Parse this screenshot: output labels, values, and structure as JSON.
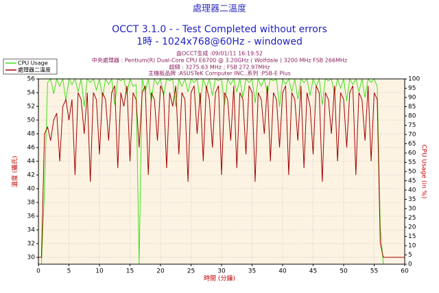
{
  "chart_data": {
    "type": "line",
    "title": "處理器二溫度",
    "subtitles": [
      "OCCT 3.1.0 -  - Test Completed without errors",
      "1時 - 1024x768@60Hz - windowed"
    ],
    "info": [
      "由OCCT生成 :09/01/11 16:19:52",
      "中央處理器 : Pentium(R) Dual-Core CPU E6700 @ 3.20GHz ( Wolfdale ) 3200 MHz FSB 266MHz",
      "超頻 : 3275.63 MHz ; FSB 272.97MHz",
      "主機板品牌 :ASUSTeK Computer INC.,系列 :P5B-E Plus"
    ],
    "x_label": "時間 (分鐘)",
    "y_label": "溫度 (攝氏)",
    "y2_label": "CPU Usage (in %)",
    "x": [
      0,
      0.5,
      1,
      1.5,
      2,
      2.5,
      3,
      3.5,
      4,
      4.5,
      5,
      5.5,
      6,
      6.5,
      7,
      7.5,
      8,
      8.5,
      9,
      9.5,
      10,
      10.5,
      11,
      11.5,
      12,
      12.5,
      13,
      13.5,
      14,
      14.5,
      15,
      15.5,
      16,
      16.5,
      17,
      17.5,
      18,
      18.5,
      19,
      19.5,
      20,
      20.5,
      21,
      21.5,
      22,
      22.5,
      23,
      23.5,
      24,
      24.5,
      25,
      25.5,
      26,
      26.5,
      27,
      27.5,
      28,
      28.5,
      29,
      29.5,
      30,
      30.5,
      31,
      31.5,
      32,
      32.5,
      33,
      33.5,
      34,
      34.5,
      35,
      35.5,
      36,
      36.5,
      37,
      37.5,
      38,
      38.5,
      39,
      39.5,
      40,
      40.5,
      41,
      41.5,
      42,
      42.5,
      43,
      43.5,
      44,
      44.5,
      45,
      45.5,
      46,
      46.5,
      47,
      47.5,
      48,
      48.5,
      49,
      49.5,
      50,
      50.5,
      51,
      51.5,
      52,
      52.5,
      53,
      53.5,
      54,
      54.5,
      55,
      55.5,
      56,
      56.5,
      57,
      57.5,
      58,
      58.5,
      59,
      59.5,
      60
    ],
    "series": [
      {
        "name": "CPU Usage",
        "color": "#40e020",
        "axis": "y2",
        "values": [
          0,
          0,
          40,
          98,
          100,
          92,
          100,
          96,
          100,
          88,
          100,
          97,
          100,
          93,
          100,
          85,
          100,
          98,
          100,
          94,
          100,
          90,
          100,
          97,
          100,
          86,
          100,
          99,
          100,
          92,
          100,
          96,
          97,
          0,
          100,
          93,
          100,
          88,
          100,
          97,
          100,
          91,
          100,
          99,
          100,
          85,
          100,
          96,
          100,
          93,
          100,
          98,
          100,
          87,
          100,
          95,
          100,
          91,
          100,
          99,
          100,
          86,
          100,
          97,
          100,
          93,
          100,
          90,
          100,
          98,
          100,
          87,
          100,
          96,
          100,
          92,
          100,
          99,
          100,
          85,
          100,
          97,
          100,
          93,
          100,
          89,
          100,
          98,
          100,
          91,
          100,
          96,
          100,
          86,
          100,
          99,
          100,
          92,
          100,
          95,
          100,
          88,
          100,
          97,
          100,
          93,
          100,
          90,
          100,
          98,
          100,
          96,
          20,
          0,
          0,
          0,
          0,
          0,
          0,
          0,
          0
        ]
      },
      {
        "name": "處理器二溫度",
        "color": "#a00000",
        "values": [
          30,
          30,
          48,
          49,
          47,
          50,
          51,
          44,
          52,
          53,
          50,
          53,
          42,
          54,
          53,
          48,
          54,
          41,
          54,
          53,
          45,
          54,
          53,
          47,
          54,
          55,
          43,
          54,
          52,
          55,
          44,
          54,
          53,
          46,
          54,
          55,
          42,
          54,
          53,
          47,
          55,
          54,
          43,
          54,
          52,
          55,
          45,
          54,
          53,
          41,
          54,
          55,
          48,
          54,
          44,
          55,
          53,
          46,
          54,
          55,
          42,
          54,
          53,
          47,
          55,
          43,
          54,
          53,
          45,
          55,
          54,
          41,
          54,
          53,
          48,
          55,
          44,
          54,
          53,
          46,
          54,
          55,
          42,
          54,
          53,
          47,
          55,
          43,
          54,
          52,
          45,
          55,
          54,
          41,
          54,
          53,
          48,
          55,
          44,
          54,
          53,
          46,
          54,
          55,
          42,
          54,
          53,
          47,
          55,
          44,
          54,
          53,
          32,
          30,
          30,
          30,
          30,
          30,
          30,
          30,
          30
        ]
      }
    ],
    "xlim": [
      0,
      60
    ],
    "xticks": [
      0,
      5,
      10,
      15,
      20,
      25,
      30,
      35,
      40,
      45,
      50,
      55,
      60
    ],
    "ylim": [
      29,
      56
    ],
    "yticks": [
      30,
      32,
      34,
      36,
      38,
      40,
      42,
      44,
      46,
      48,
      50,
      52,
      54,
      56
    ],
    "y2lim": [
      0,
      100
    ],
    "y2ticks": [
      0,
      5,
      10,
      15,
      20,
      25,
      30,
      35,
      40,
      45,
      50,
      55,
      60,
      65,
      70,
      75,
      80,
      85,
      90,
      95,
      100
    ],
    "grid": true
  }
}
